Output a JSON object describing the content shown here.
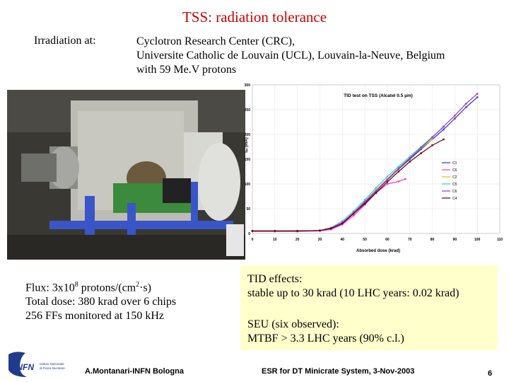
{
  "slide": {
    "title": "TSS: radiation tolerance",
    "irradiation_label": "Irradiation at:",
    "irradiation_lines": [
      "Cyclotron Research Center (CRC),",
      "Universite Catholic de Louvain (UCL), Louvain-la-Neuve, Belgium",
      "with 59 Me.V protons"
    ],
    "flux": {
      "line1_prefix": "Flux: 3x10",
      "line1_exp": "8",
      "line1_mid": " protons/(cm",
      "line1_exp2": "2",
      "line1_suffix": "·s)",
      "line2": "Total dose: 380 krad over 6 chips",
      "line3": "256 FFs monitored at 150 kHz"
    },
    "effects": {
      "tid_head": "TID effects:",
      "tid_text": "stable up to 30 krad (10 LHC years: 0.02 krad)",
      "seu_head": "SEU (six observed):",
      "seu_text": "MTBF > 3.3 LHC years (90% c.l.)"
    },
    "footer": {
      "author": "A.Montanari-INFN Bologna",
      "event": "ESR for DT Minicrate System, 3-Nov-2003",
      "page": "6"
    },
    "logo_text": "INFN",
    "logo_sub": [
      "Istituto Nazionale",
      "di Fisica Nucleare"
    ]
  },
  "chart_data": {
    "type": "line",
    "title": "TID test on TSS (Alcatel 0.5 µm)",
    "xlabel": "Absorbed dose (krad)",
    "ylabel": "Iₓₓ (mA)",
    "xlim": [
      0,
      110
    ],
    "ylim": [
      0,
      300
    ],
    "xticks": [
      "0",
      "10",
      "20",
      "30",
      "40",
      "50",
      "60",
      "70",
      "80",
      "90",
      "100",
      "110"
    ],
    "yticks": [
      "0",
      "50",
      "100",
      "150",
      "200",
      "250",
      "300"
    ],
    "legend_position": "right",
    "series": [
      {
        "name": "C1",
        "color": "#3333cc",
        "x": [
          0,
          10,
          20,
          30,
          35,
          40,
          45,
          50,
          55,
          60,
          65,
          70,
          75,
          80,
          85,
          90,
          95,
          100
        ],
        "y": [
          5,
          5,
          5,
          6,
          10,
          20,
          40,
          62,
          85,
          108,
          130,
          150,
          170,
          190,
          210,
          232,
          255,
          275
        ]
      },
      {
        "name": "C6",
        "color": "#ff33cc",
        "x": [
          0,
          10,
          20,
          30,
          35,
          40,
          45,
          50,
          55,
          60,
          65,
          68
        ],
        "y": [
          4,
          4,
          4,
          5,
          8,
          18,
          36,
          58,
          82,
          100,
          105,
          110
        ]
      },
      {
        "name": "C2",
        "color": "#cccc00",
        "x": [
          0,
          10,
          20,
          30,
          35,
          40,
          45,
          50,
          55,
          60,
          65,
          70,
          75,
          80
        ],
        "y": [
          5,
          5,
          5,
          6,
          10,
          22,
          42,
          65,
          88,
          110,
          132,
          152,
          172,
          190
        ]
      },
      {
        "name": "C5",
        "color": "#33cccc",
        "x": [
          0,
          10,
          20,
          30,
          35,
          40,
          45,
          50,
          55,
          60,
          65,
          70,
          75,
          80,
          85
        ],
        "y": [
          5,
          5,
          5,
          6,
          12,
          25,
          45,
          68,
          92,
          115,
          135,
          155,
          175,
          195,
          215
        ]
      },
      {
        "name": "C6",
        "color": "#9933cc",
        "x": [
          0,
          10,
          20,
          30,
          35,
          40,
          45,
          50,
          55,
          60,
          65,
          70,
          75,
          80,
          85,
          90,
          95,
          100
        ],
        "y": [
          5,
          5,
          5,
          6,
          11,
          22,
          42,
          64,
          86,
          109,
          131,
          152,
          173,
          194,
          216,
          238,
          262,
          282
        ]
      },
      {
        "name": "C4",
        "color": "#660000",
        "x": [
          0,
          10,
          20,
          30,
          35,
          40,
          45,
          50,
          55,
          60,
          65,
          70,
          75,
          80,
          85
        ],
        "y": [
          5,
          5,
          5,
          6,
          10,
          20,
          40,
          60,
          82,
          104,
          125,
          145,
          162,
          178,
          190
        ]
      }
    ]
  }
}
